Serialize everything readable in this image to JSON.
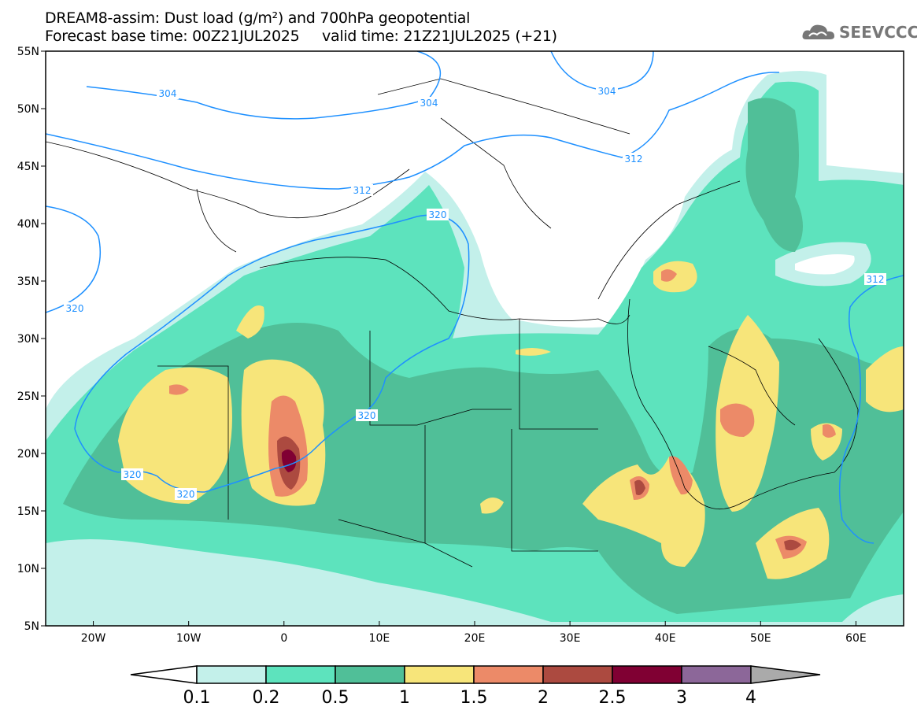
{
  "header": {
    "title_line1": "DREAM8-assim: Dust load (g/m²) and 700hPa geopotential",
    "title_line2": "Forecast base time: 00Z21JUL2025     valid time: 21Z21JUL2025 (+21)",
    "logo_text": "SEEVCCC",
    "logo_icon": "cloud-icon"
  },
  "axes": {
    "lat_labels": [
      "55N",
      "50N",
      "45N",
      "40N",
      "35N",
      "30N",
      "25N",
      "20N",
      "15N",
      "10N",
      "5N"
    ],
    "lon_labels": [
      "20W",
      "10W",
      "0",
      "10E",
      "20E",
      "30E",
      "40E",
      "50E",
      "60E"
    ]
  },
  "contours": {
    "labels": [
      "304",
      "304",
      "304",
      "312",
      "312",
      "312",
      "320",
      "320",
      "320",
      "320",
      "320"
    ],
    "color": "#1e90ff"
  },
  "colorbar": {
    "labels": [
      "0.1",
      "0.2",
      "0.5",
      "1",
      "1.5",
      "2",
      "2.5",
      "3",
      "4"
    ],
    "colors": [
      "#c3f0ea",
      "#5de3bd",
      "#50bf98",
      "#f7e57a",
      "#ec8a68",
      "#ac4a40",
      "#800033",
      "#8c6799"
    ],
    "under_color": "#ffffff",
    "over_color": "#aaaaaa"
  }
}
